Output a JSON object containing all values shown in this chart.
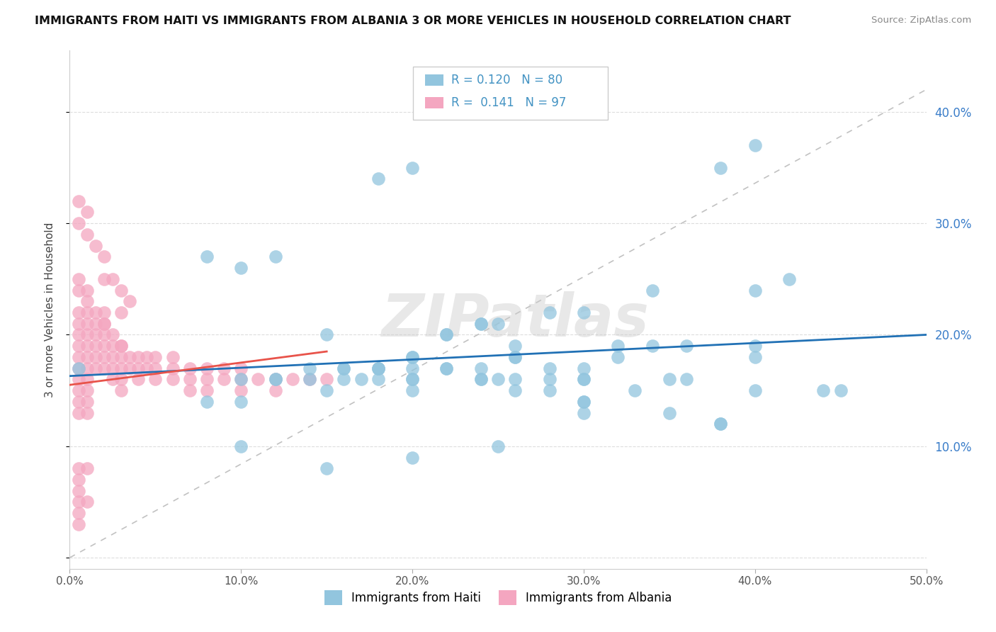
{
  "title": "IMMIGRANTS FROM HAITI VS IMMIGRANTS FROM ALBANIA 3 OR MORE VEHICLES IN HOUSEHOLD CORRELATION CHART",
  "source": "Source: ZipAtlas.com",
  "ylabel": "3 or more Vehicles in Household",
  "xlim": [
    0.0,
    0.5
  ],
  "ylim": [
    -0.01,
    0.455
  ],
  "xticks": [
    0.0,
    0.1,
    0.2,
    0.3,
    0.4,
    0.5
  ],
  "xticklabels": [
    "0.0%",
    "10.0%",
    "20.0%",
    "30.0%",
    "40.0%",
    "50.0%"
  ],
  "yticks_right": [
    0.1,
    0.2,
    0.3,
    0.4
  ],
  "yticklabels_right": [
    "10.0%",
    "20.0%",
    "30.0%",
    "40.0%"
  ],
  "haiti_color": "#92c5de",
  "albania_color": "#f4a6c0",
  "haiti_R": 0.12,
  "haiti_N": 80,
  "albania_R": 0.141,
  "albania_N": 97,
  "haiti_line_color": "#2171b5",
  "albania_line_color": "#e8534a",
  "ref_line_color": "#bbbbbb",
  "legend_R_N_color": "#4393c3",
  "watermark": "ZIPatlas",
  "haiti_x": [
    0.005,
    0.08,
    0.1,
    0.12,
    0.17,
    0.18,
    0.2,
    0.22,
    0.24,
    0.26,
    0.28,
    0.3,
    0.32,
    0.34,
    0.38,
    0.4,
    0.42,
    0.44,
    0.14,
    0.16,
    0.18,
    0.2,
    0.22,
    0.24,
    0.26,
    0.28,
    0.3,
    0.35,
    0.4,
    0.15,
    0.2,
    0.25,
    0.3,
    0.1,
    0.15,
    0.2,
    0.25,
    0.3,
    0.35,
    0.4,
    0.12,
    0.14,
    0.16,
    0.18,
    0.2,
    0.22,
    0.24,
    0.26,
    0.28,
    0.3,
    0.33,
    0.36,
    0.4,
    0.45,
    0.1,
    0.15,
    0.2,
    0.25,
    0.3,
    0.38,
    0.08,
    0.1,
    0.12,
    0.16,
    0.18,
    0.2,
    0.22,
    0.24,
    0.26,
    0.32,
    0.34,
    0.36,
    0.3,
    0.28,
    0.26,
    0.24,
    0.38,
    0.4,
    0.2,
    0.18
  ],
  "haiti_y": [
    0.17,
    0.27,
    0.26,
    0.27,
    0.16,
    0.17,
    0.17,
    0.2,
    0.16,
    0.18,
    0.16,
    0.17,
    0.18,
    0.19,
    0.12,
    0.18,
    0.25,
    0.15,
    0.16,
    0.17,
    0.17,
    0.18,
    0.17,
    0.17,
    0.18,
    0.17,
    0.16,
    0.16,
    0.24,
    0.2,
    0.16,
    0.21,
    0.16,
    0.14,
    0.15,
    0.15,
    0.16,
    0.14,
    0.13,
    0.19,
    0.16,
    0.17,
    0.17,
    0.16,
    0.16,
    0.17,
    0.16,
    0.16,
    0.15,
    0.14,
    0.15,
    0.16,
    0.15,
    0.15,
    0.1,
    0.08,
    0.09,
    0.1,
    0.13,
    0.12,
    0.14,
    0.16,
    0.16,
    0.16,
    0.17,
    0.18,
    0.2,
    0.21,
    0.19,
    0.19,
    0.24,
    0.19,
    0.22,
    0.22,
    0.15,
    0.21,
    0.35,
    0.37,
    0.35,
    0.34
  ],
  "albania_x": [
    0.005,
    0.005,
    0.005,
    0.005,
    0.005,
    0.005,
    0.005,
    0.005,
    0.005,
    0.005,
    0.01,
    0.01,
    0.01,
    0.01,
    0.01,
    0.01,
    0.01,
    0.01,
    0.01,
    0.01,
    0.015,
    0.015,
    0.015,
    0.015,
    0.015,
    0.02,
    0.02,
    0.02,
    0.02,
    0.02,
    0.025,
    0.025,
    0.025,
    0.025,
    0.03,
    0.03,
    0.03,
    0.03,
    0.03,
    0.035,
    0.035,
    0.04,
    0.04,
    0.04,
    0.045,
    0.045,
    0.05,
    0.05,
    0.05,
    0.06,
    0.06,
    0.06,
    0.07,
    0.07,
    0.07,
    0.08,
    0.08,
    0.08,
    0.09,
    0.09,
    0.1,
    0.1,
    0.1,
    0.11,
    0.12,
    0.12,
    0.13,
    0.14,
    0.15,
    0.005,
    0.01,
    0.015,
    0.02,
    0.025,
    0.03,
    0.035,
    0.005,
    0.01,
    0.02,
    0.03,
    0.005,
    0.01,
    0.02,
    0.005,
    0.01,
    0.015,
    0.02,
    0.025,
    0.03,
    0.005,
    0.01,
    0.005,
    0.005,
    0.01,
    0.005,
    0.005,
    0.005
  ],
  "albania_y": [
    0.17,
    0.18,
    0.19,
    0.2,
    0.21,
    0.22,
    0.14,
    0.15,
    0.16,
    0.13,
    0.17,
    0.18,
    0.19,
    0.2,
    0.22,
    0.21,
    0.15,
    0.16,
    0.14,
    0.13,
    0.2,
    0.21,
    0.19,
    0.18,
    0.17,
    0.2,
    0.21,
    0.19,
    0.18,
    0.17,
    0.19,
    0.18,
    0.17,
    0.16,
    0.19,
    0.18,
    0.17,
    0.16,
    0.15,
    0.18,
    0.17,
    0.18,
    0.17,
    0.16,
    0.18,
    0.17,
    0.18,
    0.17,
    0.16,
    0.17,
    0.18,
    0.16,
    0.17,
    0.16,
    0.15,
    0.17,
    0.16,
    0.15,
    0.17,
    0.16,
    0.17,
    0.16,
    0.15,
    0.16,
    0.16,
    0.15,
    0.16,
    0.16,
    0.16,
    0.3,
    0.29,
    0.28,
    0.27,
    0.25,
    0.24,
    0.23,
    0.32,
    0.31,
    0.25,
    0.22,
    0.24,
    0.23,
    0.22,
    0.25,
    0.24,
    0.22,
    0.21,
    0.2,
    0.19,
    0.08,
    0.08,
    0.06,
    0.05,
    0.05,
    0.04,
    0.03,
    0.07
  ]
}
